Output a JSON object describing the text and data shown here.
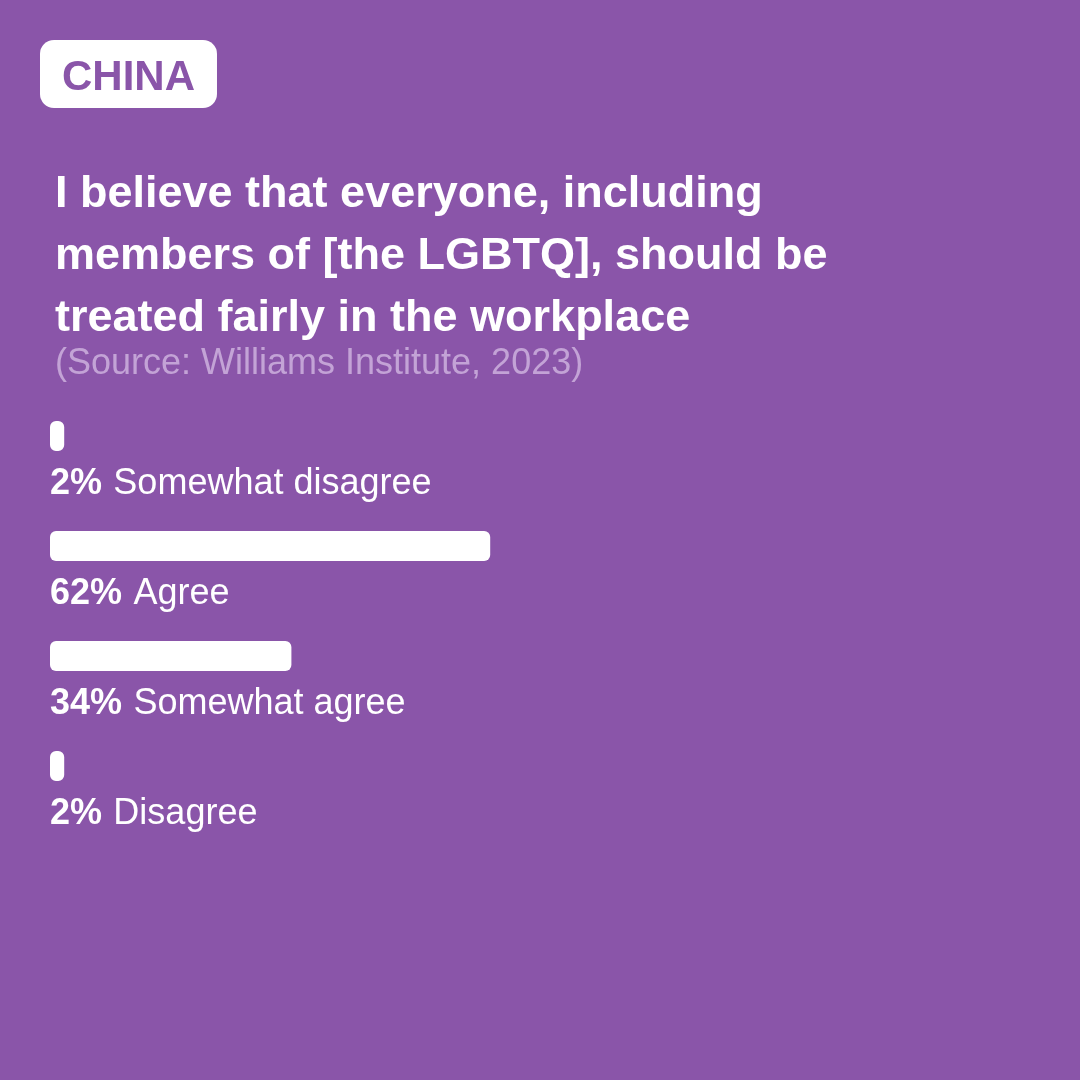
{
  "chart_data": {
    "type": "bar",
    "orientation": "horizontal",
    "title": "I believe that everyone, including members of [the LGBTQ], should be treated fairly in the workplace",
    "annotations": [
      "CHINA",
      "(Source: Williams Institute, 2023)"
    ],
    "categories": [
      "Somewhat disagree",
      "Agree",
      "Somewhat agree",
      "Disagree"
    ],
    "values": [
      2,
      62,
      34,
      2
    ],
    "value_labels": [
      "2%",
      "62%",
      "34%",
      "2%"
    ],
    "color": "#ffffff"
  }
}
